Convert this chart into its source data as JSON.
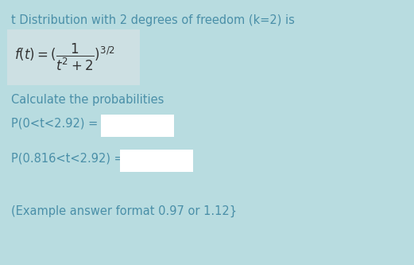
{
  "background_color": "#b8dce0",
  "title": "t Distribution with 2 degrees of freedom (k=2) is",
  "title_color": "#4a8fa8",
  "title_fontsize": 10.5,
  "formula_box_color": "#cde0e3",
  "calc_text": "Calculate the probabilities",
  "calc_color": "#4a8fa8",
  "calc_fontsize": 10.5,
  "p1_label": "P(0<t<2.92) =",
  "p2_label": "P(0.816<t<2.92) =",
  "label_color": "#4a8fa8",
  "label_fontsize": 10.5,
  "input_box_color": "#ffffff",
  "example_text": "(Example answer format 0.97 or 1.12}",
  "example_color": "#4a8fa8",
  "example_fontsize": 10.5,
  "formula_color": "#333333",
  "formula_fontsize": 12
}
